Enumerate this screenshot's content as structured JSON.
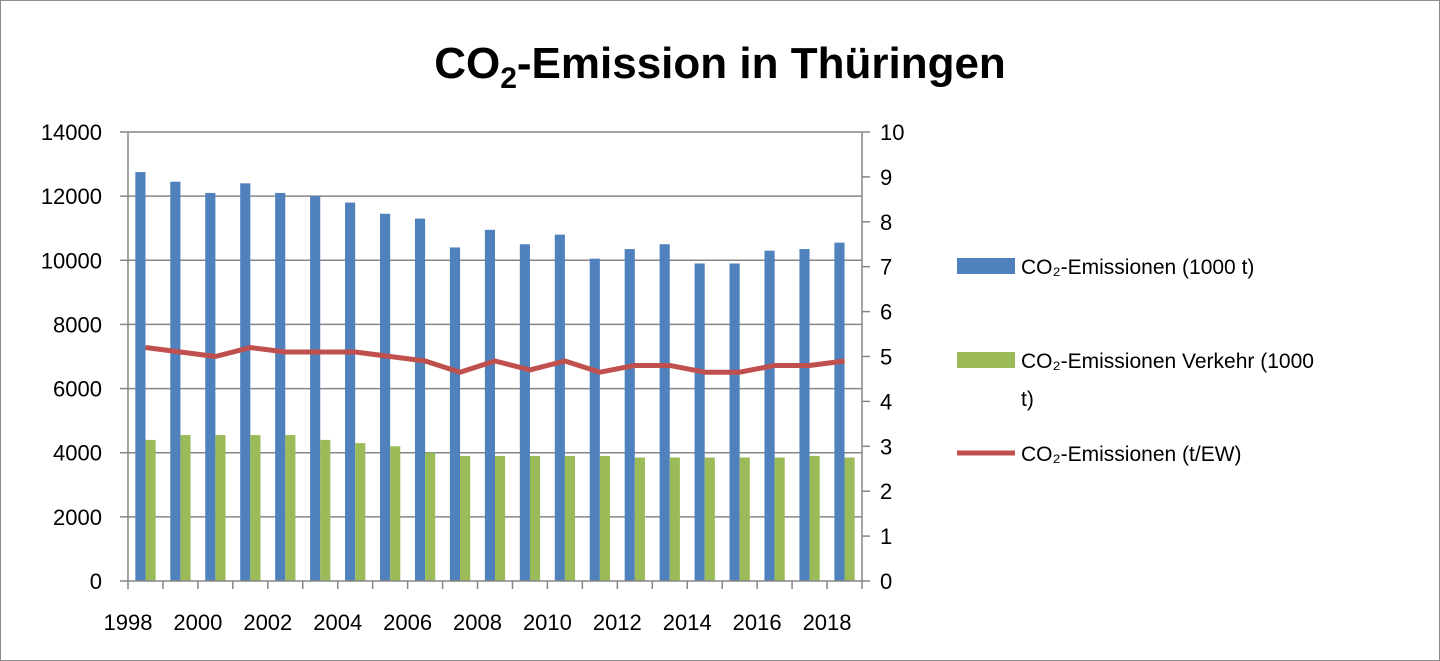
{
  "chart_data": {
    "type": "bar",
    "title_main": "CO",
    "title_sub": "2",
    "title_rest": "-Emission in Thüringen",
    "x": [
      1998,
      1999,
      2000,
      2001,
      2002,
      2003,
      2004,
      2005,
      2006,
      2007,
      2008,
      2009,
      2010,
      2011,
      2012,
      2013,
      2014,
      2015,
      2016,
      2017,
      2018
    ],
    "x_tick_labels": [
      "1998",
      "2000",
      "2002",
      "2004",
      "2006",
      "2008",
      "2010",
      "2012",
      "2014",
      "2016",
      "2018"
    ],
    "y_left": {
      "ylim": [
        0,
        14000
      ],
      "ticks": [
        0,
        2000,
        4000,
        6000,
        8000,
        10000,
        12000,
        14000
      ]
    },
    "y_right": {
      "ylim": [
        0,
        10
      ],
      "ticks": [
        0,
        1,
        2,
        3,
        4,
        5,
        6,
        7,
        8,
        9,
        10
      ]
    },
    "grid": true,
    "legend_position": "right",
    "series": [
      {
        "name": "CO₂-Emissionen (1000 t)",
        "kind": "bar",
        "axis": "left",
        "color": "#4f81bd",
        "values": [
          12750,
          12450,
          12100,
          12400,
          12100,
          12000,
          11800,
          11450,
          11300,
          10400,
          10950,
          10500,
          10800,
          10050,
          10350,
          10500,
          9900,
          9900,
          10300,
          10350,
          10550
        ]
      },
      {
        "name": "CO₂-Emissionen Verkehr  (1000 t)",
        "name_line1": "CO₂-Emissionen Verkehr  (1000",
        "name_line2": "t)",
        "kind": "bar",
        "axis": "left",
        "color": "#9bbb59",
        "values": [
          4400,
          4550,
          4550,
          4550,
          4550,
          4400,
          4300,
          4200,
          4000,
          3900,
          3900,
          3900,
          3900,
          3900,
          3850,
          3850,
          3850,
          3850,
          3850,
          3900,
          3850
        ]
      },
      {
        "name": "CO₂-Emissionen (t/EW)",
        "kind": "line",
        "axis": "right",
        "color": "#c0504d",
        "values": [
          5.2,
          5.1,
          5.0,
          5.2,
          5.1,
          5.1,
          5.1,
          5.0,
          4.9,
          4.65,
          4.9,
          4.7,
          4.9,
          4.65,
          4.8,
          4.8,
          4.65,
          4.65,
          4.8,
          4.8,
          4.9
        ]
      }
    ]
  }
}
